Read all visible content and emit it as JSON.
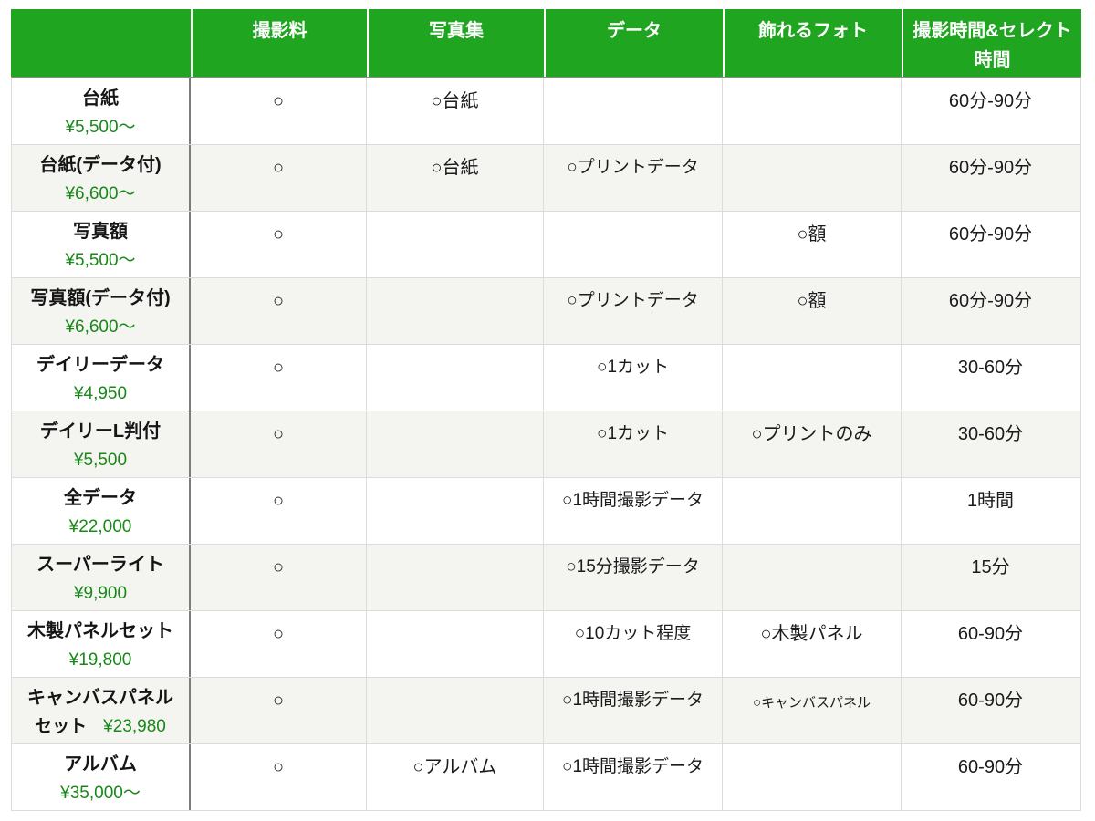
{
  "chart_data": {
    "type": "table",
    "columns": [
      "",
      "撮影料",
      "写真集",
      "データ",
      "飾れるフォト",
      "撮影時間&セレクト時間"
    ],
    "rows": [
      {
        "name": "台紙",
        "name2": "",
        "price": "¥5,500〜",
        "shoot": "○",
        "book": "○台紙",
        "data": "",
        "photo": "",
        "time": "60分-90分"
      },
      {
        "name": "台紙(データ付)",
        "name2": "",
        "price": "¥6,600〜",
        "shoot": "○",
        "book": "○台紙",
        "data": "○プリントデータ",
        "photo": "",
        "time": "60分-90分"
      },
      {
        "name": "写真額",
        "name2": "",
        "price": "¥5,500〜",
        "shoot": "○",
        "book": "",
        "data": "",
        "photo": "○額",
        "time": "60分-90分"
      },
      {
        "name": "写真額(データ付)",
        "name2": "",
        "price": "¥6,600〜",
        "shoot": "○",
        "book": "",
        "data": "○プリントデータ",
        "photo": "○額",
        "time": "60分-90分"
      },
      {
        "name": "デイリーデータ",
        "name2": "",
        "price": "¥4,950",
        "shoot": "○",
        "book": "",
        "data": "○1カット",
        "photo": "",
        "time": "30-60分"
      },
      {
        "name": "デイリーL判付",
        "name2": "",
        "price": "¥5,500",
        "shoot": "○",
        "book": "",
        "data": "○1カット",
        "photo": "○プリントのみ",
        "time": "30-60分"
      },
      {
        "name": "全データ",
        "name2": "",
        "price": "¥22,000",
        "shoot": "○",
        "book": "",
        "data": "○1時間撮影データ",
        "photo": "",
        "time": "1時間"
      },
      {
        "name": "スーパーライト",
        "name2": "",
        "price": "¥9,900",
        "shoot": "○",
        "book": "",
        "data": "○15分撮影データ",
        "photo": "",
        "time": "15分"
      },
      {
        "name": "木製パネルセット",
        "name2": "",
        "price": "¥19,800",
        "shoot": "○",
        "book": "",
        "data": "○10カット程度",
        "photo": "○木製パネル",
        "time": "60-90分"
      },
      {
        "name": "キャンバスパネル",
        "name2": "セット",
        "price": "¥23,980",
        "shoot": "○",
        "book": "",
        "data": "○1時間撮影データ",
        "photo": "○キャンバスパネル",
        "time": "60-90分"
      },
      {
        "name": "アルバム",
        "name2": "",
        "price": "¥35,000〜",
        "shoot": "○",
        "book": "○アルバム",
        "data": "○1時間撮影データ",
        "photo": "",
        "time": "60-90分"
      }
    ]
  },
  "colors": {
    "header_bg": "#1fa51f",
    "header_text": "#ffffff",
    "price_green": "#188818",
    "alt_row_bg": "#f4f4f1",
    "divider_dark": "#7c7c79",
    "divider_light": "#dcdcda"
  }
}
